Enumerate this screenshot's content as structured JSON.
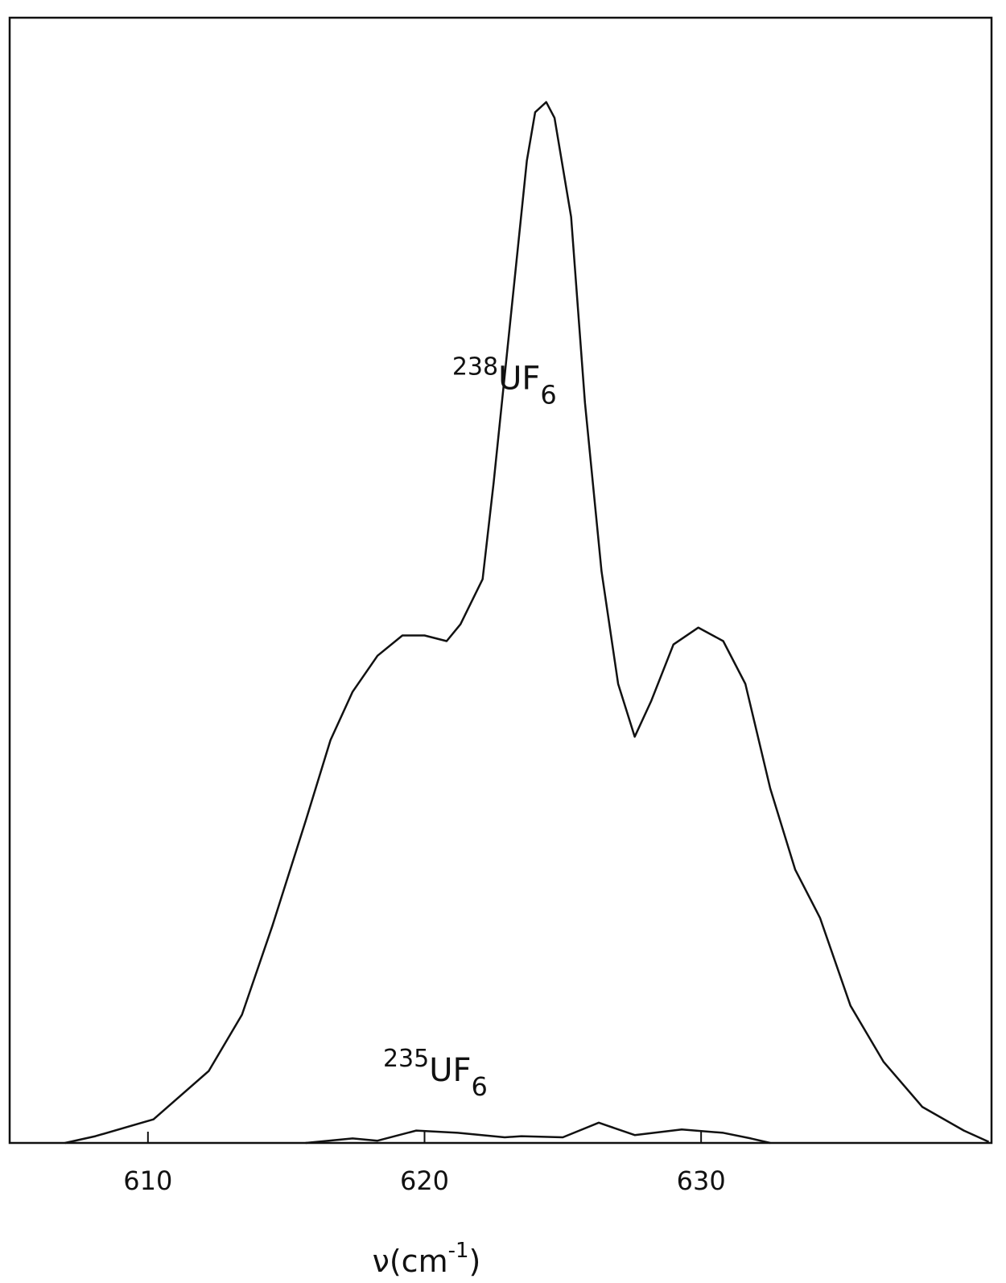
{
  "chart_data": {
    "type": "line",
    "xlabel": {
      "main": "ν(cm",
      "sup": "-1",
      "end": ")"
    },
    "annotations": [
      {
        "mass": "238",
        "formula": "UF",
        "sub": "6",
        "x": 621.0,
        "y": 67
      },
      {
        "mass": "235",
        "formula": "UF",
        "sub": "6",
        "x": 618.5,
        "y": 5.5
      }
    ],
    "xlim": [
      605,
      640.5
    ],
    "ylim": [
      0,
      100
    ],
    "xticks": [
      610,
      620,
      630
    ],
    "series": [
      {
        "color": "#111111",
        "x": [
          607.0,
          608.1,
          610.2,
          612.2,
          613.4,
          614.5,
          615.7,
          616.6,
          617.4,
          618.3,
          619.2,
          620.0,
          620.8,
          621.3,
          622.1,
          622.5,
          623.1,
          623.7,
          624.0,
          624.4,
          624.7,
          625.3,
          625.8,
          626.4,
          627.0,
          627.6,
          628.2,
          629.0,
          629.9,
          630.8,
          631.6,
          632.5,
          633.4,
          634.3,
          635.4,
          636.6,
          638.0,
          639.5,
          640.4
        ],
        "values": [
          0,
          0.6,
          2.1,
          6.4,
          11.4,
          19.3,
          28.6,
          35.8,
          40.1,
          43.3,
          45.1,
          45.1,
          44.6,
          46.1,
          50.1,
          58.7,
          73,
          87.3,
          91.6,
          92.5,
          91.1,
          82.3,
          65.8,
          50.8,
          40.8,
          36.1,
          39.3,
          44.3,
          45.8,
          44.6,
          40.8,
          31.5,
          24.3,
          20.0,
          12.2,
          7.2,
          3.2,
          1.1,
          0.1
        ]
      },
      {
        "color": "#111111",
        "x": [
          615.7,
          617.4,
          618.3,
          619.7,
          621.2,
          622.9,
          623.5,
          625.0,
          626.3,
          627.6,
          629.3,
          630.8,
          631.8,
          632.5
        ],
        "values": [
          0,
          0.4,
          0.2,
          1.1,
          0.9,
          0.5,
          0.6,
          0.5,
          1.8,
          0.7,
          1.2,
          0.9,
          0.4,
          0
        ]
      }
    ]
  }
}
